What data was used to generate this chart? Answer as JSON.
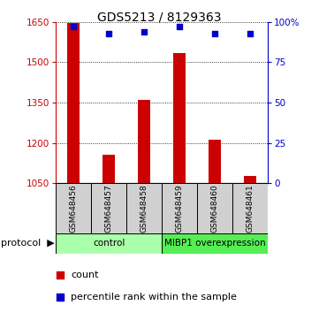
{
  "title": "GDS5213 / 8129363",
  "samples": [
    "GSM648456",
    "GSM648457",
    "GSM648458",
    "GSM648459",
    "GSM648460",
    "GSM648461"
  ],
  "counts": [
    1645,
    1155,
    1360,
    1535,
    1210,
    1075
  ],
  "percentiles": [
    97,
    93,
    94,
    97,
    93,
    93
  ],
  "ylim_left": [
    1050,
    1650
  ],
  "ylim_right": [
    0,
    100
  ],
  "yticks_left": [
    1050,
    1200,
    1350,
    1500,
    1650
  ],
  "yticks_right": [
    0,
    25,
    50,
    75,
    100
  ],
  "bar_color": "#cc0000",
  "dot_color": "#0000cc",
  "bar_width": 0.35,
  "protocol_groups": [
    {
      "label": "control",
      "start": 0,
      "end": 3,
      "color": "#aaffaa"
    },
    {
      "label": "MIBP1 overexpression",
      "start": 3,
      "end": 6,
      "color": "#55ee55"
    }
  ],
  "protocol_label": "protocol",
  "legend_items": [
    {
      "label": "count",
      "color": "#cc0000"
    },
    {
      "label": "percentile rank within the sample",
      "color": "#0000cc"
    }
  ],
  "title_fontsize": 10,
  "tick_fontsize": 7.5,
  "sample_fontsize": 6.5,
  "legend_fontsize": 8
}
